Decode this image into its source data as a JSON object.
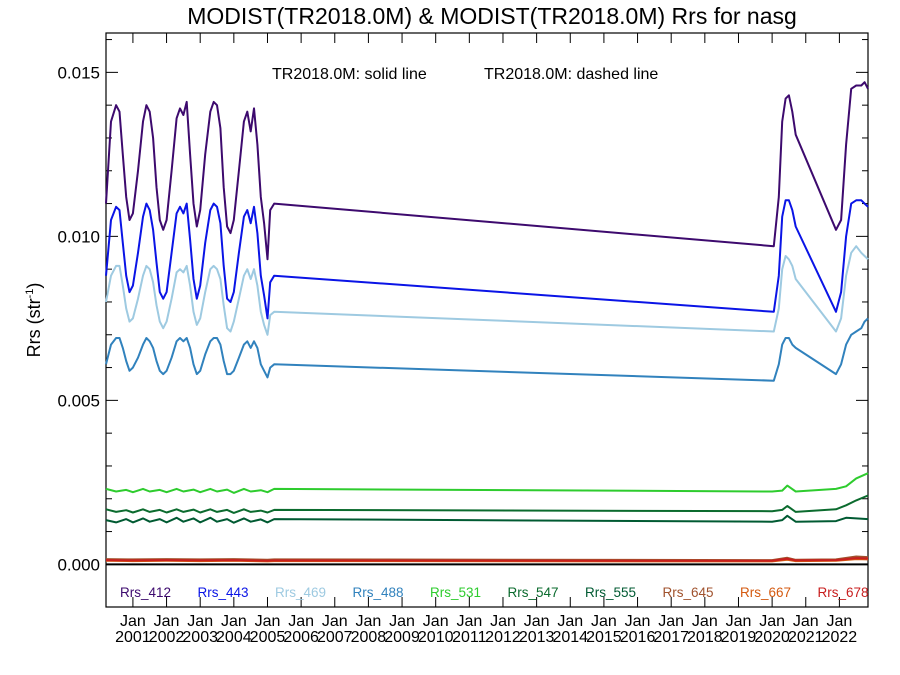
{
  "chart_data": {
    "type": "line",
    "title": "MODIST(TR2018.0M) & MODIST(TR2018.0M)  Rrs for nasg",
    "annotation": {
      "solid": "TR2018.0M: solid line",
      "dashed": "TR2018.0M: dashed line"
    },
    "ylabel": "Rrs (str",
    "ylabel_sup": "-1",
    "ylabel_close": ")",
    "ylim": [
      -0.0013,
      0.0162
    ],
    "yticks": [
      0.0,
      0.005,
      0.01,
      0.015
    ],
    "ytick_labels": [
      "0.000",
      "0.005",
      "0.010",
      "0.015"
    ],
    "xlim": [
      2000.2,
      2022.85
    ],
    "xticks": [
      2001,
      2002,
      2003,
      2004,
      2005,
      2006,
      2007,
      2008,
      2009,
      2010,
      2011,
      2012,
      2013,
      2014,
      2015,
      2016,
      2017,
      2018,
      2019,
      2020,
      2021,
      2022
    ],
    "xtick_top": "Jan",
    "xtick_labels": [
      "2001",
      "2002",
      "2003",
      "2004",
      "2005",
      "2006",
      "2007",
      "2008",
      "2009",
      "2010",
      "2011",
      "2012",
      "2013",
      "2014",
      "2015",
      "2016",
      "2017",
      "2018",
      "2019",
      "2020",
      "2021",
      "2022"
    ],
    "zero_line": true,
    "grid": false,
    "legend_position": "bottom",
    "series": [
      {
        "name": "Rrs_412",
        "color": "#3d0a6e",
        "x": [
          2000.2,
          2000.35,
          2000.5,
          2000.6,
          2000.7,
          2000.8,
          2000.9,
          2001.0,
          2001.15,
          2001.3,
          2001.4,
          2001.5,
          2001.6,
          2001.7,
          2001.8,
          2001.9,
          2002.0,
          2002.15,
          2002.3,
          2002.4,
          2002.5,
          2002.6,
          2002.7,
          2002.8,
          2002.9,
          2003.0,
          2003.15,
          2003.3,
          2003.4,
          2003.5,
          2003.6,
          2003.7,
          2003.8,
          2003.9,
          2004.0,
          2004.15,
          2004.3,
          2004.4,
          2004.5,
          2004.6,
          2004.7,
          2004.8,
          2004.9,
          2005.0,
          2005.08,
          2005.2,
          2020.05,
          2020.2,
          2020.3,
          2020.4,
          2020.5,
          2020.6,
          2020.7,
          2021.9,
          2022.05,
          2022.2,
          2022.35,
          2022.5,
          2022.65,
          2022.75,
          2022.85
        ],
        "values": [
          0.011,
          0.0135,
          0.014,
          0.0138,
          0.0125,
          0.0112,
          0.0105,
          0.0107,
          0.012,
          0.0135,
          0.014,
          0.0138,
          0.013,
          0.0115,
          0.0105,
          0.0102,
          0.0105,
          0.012,
          0.0136,
          0.0139,
          0.0137,
          0.0141,
          0.0125,
          0.011,
          0.0103,
          0.0108,
          0.0125,
          0.0138,
          0.0141,
          0.014,
          0.0133,
          0.0115,
          0.0103,
          0.0101,
          0.0105,
          0.012,
          0.0135,
          0.0138,
          0.0132,
          0.0139,
          0.0128,
          0.0112,
          0.0104,
          0.0093,
          0.0108,
          0.011,
          0.0097,
          0.0112,
          0.0135,
          0.0142,
          0.0143,
          0.0138,
          0.0131,
          0.0102,
          0.0105,
          0.0128,
          0.0145,
          0.0146,
          0.0146,
          0.0147,
          0.0145
        ]
      },
      {
        "name": "Rrs_443",
        "color": "#0a14e6",
        "x": [
          2000.2,
          2000.35,
          2000.5,
          2000.6,
          2000.7,
          2000.8,
          2000.9,
          2001.0,
          2001.15,
          2001.3,
          2001.4,
          2001.5,
          2001.6,
          2001.7,
          2001.8,
          2001.9,
          2002.0,
          2002.15,
          2002.3,
          2002.4,
          2002.5,
          2002.6,
          2002.7,
          2002.8,
          2002.9,
          2003.0,
          2003.15,
          2003.3,
          2003.4,
          2003.5,
          2003.6,
          2003.7,
          2003.8,
          2003.9,
          2004.0,
          2004.15,
          2004.3,
          2004.4,
          2004.5,
          2004.6,
          2004.7,
          2004.8,
          2004.9,
          2005.0,
          2005.08,
          2005.2,
          2020.05,
          2020.2,
          2020.3,
          2020.4,
          2020.5,
          2020.6,
          2020.7,
          2021.9,
          2022.05,
          2022.2,
          2022.35,
          2022.5,
          2022.65,
          2022.75,
          2022.85
        ],
        "values": [
          0.0088,
          0.0105,
          0.0109,
          0.0108,
          0.0098,
          0.0088,
          0.0083,
          0.0085,
          0.0095,
          0.0106,
          0.011,
          0.0108,
          0.0102,
          0.0092,
          0.0083,
          0.0081,
          0.0083,
          0.0095,
          0.0107,
          0.0109,
          0.0107,
          0.011,
          0.0099,
          0.0087,
          0.0081,
          0.0085,
          0.0098,
          0.0108,
          0.011,
          0.0109,
          0.0104,
          0.0091,
          0.0081,
          0.008,
          0.0083,
          0.0095,
          0.0106,
          0.0108,
          0.0104,
          0.0109,
          0.0101,
          0.0088,
          0.0082,
          0.0075,
          0.0086,
          0.0088,
          0.0077,
          0.0088,
          0.0106,
          0.0111,
          0.0111,
          0.0108,
          0.0103,
          0.0077,
          0.0083,
          0.01,
          0.011,
          0.0111,
          0.0111,
          0.011,
          0.0109
        ]
      },
      {
        "name": "Rrs_469",
        "color": "#9ecae1",
        "x": [
          2000.2,
          2000.35,
          2000.5,
          2000.6,
          2000.7,
          2000.8,
          2000.9,
          2001.0,
          2001.15,
          2001.3,
          2001.4,
          2001.5,
          2001.6,
          2001.7,
          2001.8,
          2001.9,
          2002.0,
          2002.15,
          2002.3,
          2002.4,
          2002.5,
          2002.6,
          2002.7,
          2002.8,
          2002.9,
          2003.0,
          2003.15,
          2003.3,
          2003.4,
          2003.5,
          2003.6,
          2003.7,
          2003.8,
          2003.9,
          2004.0,
          2004.15,
          2004.3,
          2004.4,
          2004.5,
          2004.6,
          2004.7,
          2004.8,
          2004.9,
          2005.0,
          2005.08,
          2005.2,
          2020.05,
          2020.2,
          2020.3,
          2020.4,
          2020.5,
          2020.6,
          2020.7,
          2021.9,
          2022.05,
          2022.2,
          2022.35,
          2022.5,
          2022.65,
          2022.75,
          2022.85
        ],
        "values": [
          0.008,
          0.0088,
          0.0091,
          0.0091,
          0.0085,
          0.0078,
          0.0074,
          0.0075,
          0.0081,
          0.0088,
          0.0091,
          0.009,
          0.0086,
          0.0079,
          0.0074,
          0.0072,
          0.0074,
          0.0081,
          0.0089,
          0.009,
          0.0089,
          0.0091,
          0.0085,
          0.0077,
          0.0073,
          0.0075,
          0.0083,
          0.009,
          0.0091,
          0.009,
          0.0087,
          0.0079,
          0.0072,
          0.0071,
          0.0074,
          0.0081,
          0.0088,
          0.009,
          0.0087,
          0.009,
          0.0085,
          0.0077,
          0.0073,
          0.007,
          0.0076,
          0.0077,
          0.0071,
          0.0078,
          0.009,
          0.0094,
          0.0093,
          0.0091,
          0.0087,
          0.0071,
          0.0075,
          0.0088,
          0.0095,
          0.0097,
          0.0095,
          0.0094,
          0.0093
        ]
      },
      {
        "name": "Rrs_488",
        "color": "#3182bd",
        "x": [
          2000.2,
          2000.35,
          2000.5,
          2000.6,
          2000.7,
          2000.8,
          2000.9,
          2001.0,
          2001.15,
          2001.3,
          2001.4,
          2001.5,
          2001.6,
          2001.7,
          2001.8,
          2001.9,
          2002.0,
          2002.15,
          2002.3,
          2002.4,
          2002.5,
          2002.6,
          2002.7,
          2002.8,
          2002.9,
          2003.0,
          2003.15,
          2003.3,
          2003.4,
          2003.5,
          2003.6,
          2003.7,
          2003.8,
          2003.9,
          2004.0,
          2004.15,
          2004.3,
          2004.4,
          2004.5,
          2004.6,
          2004.7,
          2004.8,
          2004.9,
          2005.0,
          2005.08,
          2005.2,
          2020.05,
          2020.2,
          2020.3,
          2020.4,
          2020.5,
          2020.6,
          2020.7,
          2021.9,
          2022.05,
          2022.2,
          2022.35,
          2022.5,
          2022.65,
          2022.75,
          2022.85
        ],
        "values": [
          0.0061,
          0.0067,
          0.0069,
          0.0069,
          0.0066,
          0.0062,
          0.0059,
          0.006,
          0.0063,
          0.0067,
          0.0069,
          0.0068,
          0.0066,
          0.0062,
          0.0059,
          0.0058,
          0.0059,
          0.0063,
          0.0068,
          0.0069,
          0.0068,
          0.0069,
          0.0066,
          0.0061,
          0.0058,
          0.0059,
          0.0064,
          0.0068,
          0.0069,
          0.0069,
          0.0067,
          0.0062,
          0.0058,
          0.0058,
          0.0059,
          0.0063,
          0.0067,
          0.0068,
          0.0066,
          0.0068,
          0.0066,
          0.0061,
          0.0059,
          0.0057,
          0.006,
          0.0061,
          0.0056,
          0.0061,
          0.0067,
          0.0069,
          0.0069,
          0.0067,
          0.0066,
          0.0058,
          0.0061,
          0.0067,
          0.007,
          0.0071,
          0.0072,
          0.0074,
          0.0075
        ]
      },
      {
        "name": "Rrs_531",
        "color": "#2ecc2e",
        "x": [
          2000.2,
          2000.5,
          2000.8,
          2001.0,
          2001.3,
          2001.5,
          2001.8,
          2002.0,
          2002.3,
          2002.5,
          2002.8,
          2003.0,
          2003.3,
          2003.5,
          2003.8,
          2004.0,
          2004.3,
          2004.5,
          2004.8,
          2005.0,
          2005.2,
          2020.0,
          2020.3,
          2020.45,
          2020.7,
          2021.9,
          2022.2,
          2022.5,
          2022.85
        ],
        "values": [
          0.0023,
          0.00222,
          0.00227,
          0.0022,
          0.0023,
          0.00222,
          0.00227,
          0.0022,
          0.0023,
          0.00222,
          0.00228,
          0.0022,
          0.0023,
          0.00222,
          0.00228,
          0.00218,
          0.0023,
          0.00222,
          0.00226,
          0.0022,
          0.0023,
          0.00222,
          0.00225,
          0.0024,
          0.00222,
          0.0023,
          0.00238,
          0.00262,
          0.00278
        ]
      },
      {
        "name": "Rrs_547",
        "color": "#0b6b2e",
        "x": [
          2000.2,
          2000.5,
          2000.8,
          2001.0,
          2001.3,
          2001.5,
          2001.8,
          2002.0,
          2002.3,
          2002.5,
          2002.8,
          2003.0,
          2003.3,
          2003.5,
          2003.8,
          2004.0,
          2004.3,
          2004.5,
          2004.8,
          2005.0,
          2005.2,
          2020.0,
          2020.3,
          2020.45,
          2020.7,
          2021.9,
          2022.2,
          2022.5,
          2022.85
        ],
        "values": [
          0.00168,
          0.0016,
          0.00165,
          0.00158,
          0.00168,
          0.0016,
          0.00166,
          0.00158,
          0.00168,
          0.0016,
          0.00167,
          0.00158,
          0.00168,
          0.0016,
          0.00166,
          0.00157,
          0.00168,
          0.0016,
          0.00164,
          0.00158,
          0.00166,
          0.00162,
          0.00166,
          0.00178,
          0.0016,
          0.00168,
          0.0018,
          0.00195,
          0.0021
        ]
      },
      {
        "name": "Rrs_555",
        "color": "#005a32",
        "x": [
          2000.2,
          2000.5,
          2000.8,
          2001.0,
          2001.3,
          2001.5,
          2001.8,
          2002.0,
          2002.3,
          2002.5,
          2002.8,
          2003.0,
          2003.3,
          2003.5,
          2003.8,
          2004.0,
          2004.3,
          2004.5,
          2004.8,
          2005.0,
          2005.2,
          2020.0,
          2020.3,
          2020.45,
          2020.7,
          2021.9,
          2022.2,
          2022.5,
          2022.85
        ],
        "values": [
          0.00135,
          0.00128,
          0.00138,
          0.00128,
          0.0014,
          0.0013,
          0.00138,
          0.00128,
          0.00142,
          0.0013,
          0.0014,
          0.00128,
          0.00142,
          0.0013,
          0.00138,
          0.00127,
          0.0014,
          0.0013,
          0.00137,
          0.00128,
          0.00138,
          0.0013,
          0.00135,
          0.00148,
          0.0013,
          0.00132,
          0.00142,
          0.0014,
          0.00138
        ]
      },
      {
        "name": "Rrs_645",
        "color": "#a0522d",
        "x": [
          2000.2,
          2001.0,
          2002.0,
          2003.0,
          2004.0,
          2005.0,
          2005.2,
          2020.0,
          2020.45,
          2020.7,
          2021.9,
          2022.5,
          2022.85
        ],
        "values": [
          0.00016,
          0.00015,
          0.00016,
          0.00015,
          0.00016,
          0.00014,
          0.00015,
          0.00013,
          0.0002,
          0.00014,
          0.00015,
          0.00024,
          0.00022
        ]
      },
      {
        "name": "Rrs_667",
        "color": "#d45a10",
        "x": [
          2000.2,
          2001.0,
          2002.0,
          2003.0,
          2004.0,
          2005.0,
          2005.2,
          2020.0,
          2020.45,
          2020.7,
          2021.9,
          2022.5,
          2022.85
        ],
        "values": [
          0.00011,
          0.0001,
          0.00011,
          0.0001,
          0.00011,
          9e-05,
          0.0001,
          9e-05,
          0.00014,
          0.0001,
          0.00011,
          0.00016,
          0.00015
        ]
      },
      {
        "name": "Rrs_678",
        "color": "#c81e1e",
        "x": [
          2000.2,
          2001.0,
          2002.0,
          2003.0,
          2004.0,
          2005.0,
          2005.2,
          2020.0,
          2020.45,
          2020.7,
          2021.9,
          2022.5,
          2022.85
        ],
        "values": [
          0.00013,
          0.00012,
          0.00013,
          0.00012,
          0.00013,
          0.00011,
          0.00012,
          0.00011,
          0.00017,
          0.00012,
          0.00013,
          0.00019,
          0.00018
        ]
      }
    ]
  }
}
